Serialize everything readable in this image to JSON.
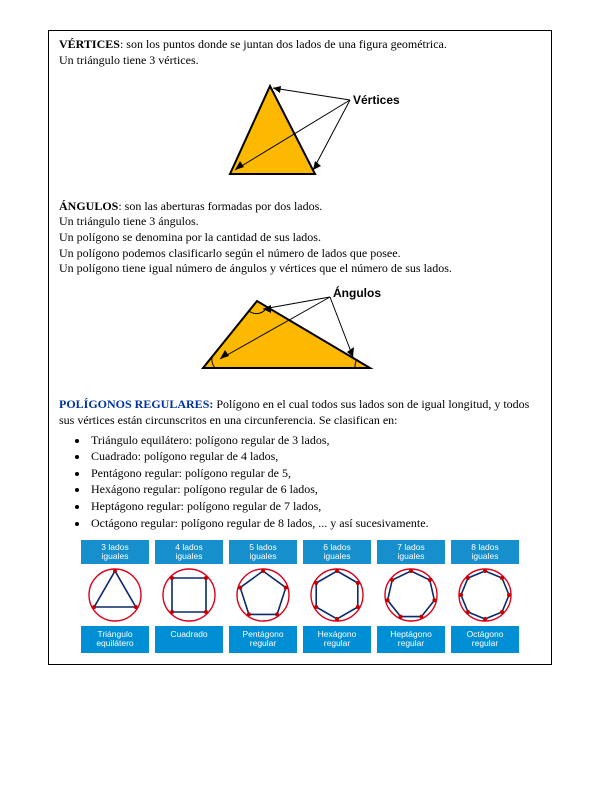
{
  "vertices": {
    "term": "VÉRTICES",
    "def": ": son los puntos donde se juntan dos lados de una figura geométrica.",
    "line2": "Un triángulo tiene 3 vértices.",
    "figure_label": "Vértices",
    "triangle_fill": "#fdb900",
    "triangle_stroke": "#000000"
  },
  "angulos": {
    "term": "ÁNGULOS",
    "def": ": son las aberturas formadas por dos lados.",
    "lines": [
      "Un triángulo tiene 3 ángulos.",
      "Un polígono se denomina por la cantidad de sus lados.",
      "Un polígono podemos clasificarlo según el número de lados que posee.",
      "Un polígono tiene igual número de ángulos y vértices que el número de sus lados."
    ],
    "figure_label": "Ángulos",
    "triangle_fill": "#fdb900",
    "triangle_stroke": "#000000"
  },
  "regulares": {
    "term": "POLÍGONOS REGULARES:",
    "def": " Polígono en el cual todos sus lados son de igual longitud, y todos sus vértices están circunscritos en una circunferencia. Se clasifican en:",
    "items": [
      "Triángulo equilátero: polígono regular de 3 lados,",
      "Cuadrado: polígono regular de 4 lados,",
      "Pentágono regular: polígono regular de 5,",
      "Hexágono regular: polígono regular de 6 lados,",
      "Heptágono regular: polígono regular de 7 lados,",
      "Octágono regular: polígono regular de 8 lados, ... y así sucesivamente."
    ]
  },
  "cards": [
    {
      "top1": "3 lados",
      "top2": "iguales",
      "bot1": "Triángulo",
      "bot2": "equilátero",
      "sides": 3
    },
    {
      "top1": "4 lados",
      "top2": "iguales",
      "bot1": "Cuadrado",
      "bot2": "",
      "sides": 4
    },
    {
      "top1": "5 lados",
      "top2": "iguales",
      "bot1": "Pentágono",
      "bot2": "regular",
      "sides": 5
    },
    {
      "top1": "6 lados",
      "top2": "iguales",
      "bot1": "Hexágono",
      "bot2": "regular",
      "sides": 6
    },
    {
      "top1": "7 lados",
      "top2": "iguales",
      "bot1": "Heptágono",
      "bot2": "regular",
      "sides": 7
    },
    {
      "top1": "8 lados",
      "top2": "iguales",
      "bot1": "Octágono",
      "bot2": "regular",
      "sides": 8
    }
  ],
  "card_style": {
    "circle_stroke": "#d9001b",
    "poly_fill": "#ffffff",
    "poly_stroke": "#0a2a6b",
    "vertex_dot": "#c00000",
    "top_bg": "#168fcc",
    "bot_bg": "#008fd5"
  }
}
